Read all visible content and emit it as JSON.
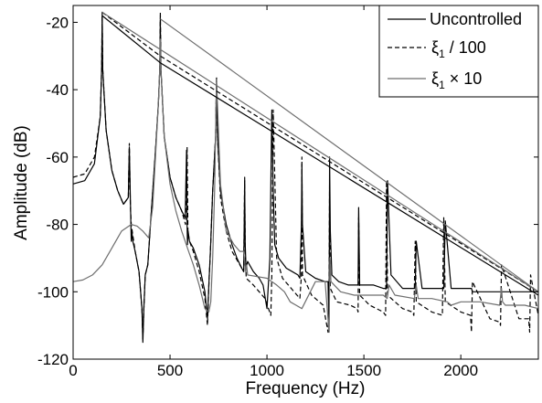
{
  "chart_data": {
    "type": "line",
    "xlabel": "Frequency (Hz)",
    "ylabel": "Amplitude (dB)",
    "xlim": [
      0,
      2400
    ],
    "ylim": [
      -120,
      -15
    ],
    "xticks": [
      0,
      500,
      1000,
      1500,
      2000
    ],
    "xtick_labels": [
      "0",
      "500",
      "1000",
      "1500",
      "2000"
    ],
    "yticks": [
      -120,
      -100,
      -80,
      -60,
      -40,
      -20
    ],
    "ytick_labels": [
      "-120",
      "-100",
      "-80",
      "-60",
      "-40",
      "-20"
    ],
    "grid": false,
    "legend_position": "top-right",
    "legend": {
      "entry1": "Uncontrolled",
      "entry2_sym": "ξ",
      "entry2_sub": "1",
      "entry2_rest": " / 100",
      "entry3_sym": "ξ",
      "entry3_sub": "1",
      "entry3_rest": " × 10"
    },
    "series": [
      {
        "name": "Uncontrolled",
        "color": "#000000",
        "dash": "solid",
        "x": [
          0,
          60,
          110,
          140,
          147,
          150,
          153,
          170,
          200,
          230,
          260,
          285,
          290,
          295,
          298,
          300,
          303,
          308,
          320,
          340,
          355,
          360,
          365,
          372,
          385,
          405,
          425,
          440,
          447,
          450,
          453,
          470,
          500,
          530,
          560,
          578,
          585,
          588,
          590,
          593,
          600,
          620,
          650,
          680,
          693,
          700,
          708,
          720,
          735,
          740,
          745,
          760,
          790,
          820,
          845,
          870,
          880,
          885,
          888,
          892,
          900,
          930,
          960,
          980,
          1000,
          1015,
          1025,
          1032,
          1040,
          1060,
          1100,
          1130,
          1160,
          1170,
          1178,
          1180,
          1183,
          1200,
          1250,
          1300,
          1315,
          1320,
          1323,
          1327,
          1335,
          1370,
          1420,
          1460,
          1470,
          1473,
          1478,
          1500,
          1550,
          1600,
          1612,
          1617,
          1622,
          1640,
          1700,
          1750,
          1760,
          1765,
          1770,
          1800,
          1880,
          1905,
          1912,
          1920,
          1950,
          2030,
          2050,
          2055,
          2060,
          2100,
          2190,
          2200,
          2205,
          2210,
          2260,
          2320,
          2350,
          2355,
          2360,
          2400
        ],
        "y": [
          -68,
          -67,
          -62,
          -48,
          -34,
          -18,
          -34,
          -52,
          -64,
          -70,
          -74,
          -72,
          -57,
          -72,
          -80,
          -85,
          -82,
          -85,
          -88,
          -94,
          -105,
          -115,
          -105,
          -95,
          -92,
          -75,
          -58,
          -44,
          -34,
          -19,
          -34,
          -54,
          -66,
          -72,
          -76,
          -78,
          -58,
          -80,
          -86,
          -82,
          -85,
          -87,
          -92,
          -100,
          -108,
          -98,
          -88,
          -70,
          -54,
          -37,
          -54,
          -70,
          -80,
          -86,
          -90,
          -93,
          -94,
          -67,
          -86,
          -93,
          -91,
          -94,
          -96,
          -98,
          -105,
          -90,
          -46,
          -70,
          -86,
          -90,
          -93,
          -94,
          -95,
          -96,
          -80,
          -62,
          -80,
          -94,
          -96,
          -97,
          -97,
          -112,
          -60,
          -82,
          -95,
          -97,
          -98,
          -98,
          -98,
          -75,
          -98,
          -98,
          -98,
          -99,
          -99,
          -99,
          -67,
          -95,
          -99,
          -99,
          -99,
          -99,
          -85,
          -99,
          -99,
          -99,
          -99,
          -79,
          -99,
          -99,
          -99,
          -99,
          -100,
          -100,
          -100,
          -100,
          -100,
          -100,
          -100,
          -100,
          -100,
          -100,
          -100,
          -100
        ]
      },
      {
        "name": "ξ1 / 100",
        "color": "#000000",
        "dash": "dashed",
        "x": [
          0,
          60,
          110,
          140,
          147,
          150,
          153,
          170,
          200,
          230,
          260,
          285,
          290,
          295,
          300,
          320,
          340,
          355,
          360,
          365,
          372,
          385,
          405,
          425,
          440,
          447,
          450,
          453,
          470,
          500,
          530,
          560,
          580,
          588,
          592,
          600,
          620,
          650,
          680,
          693,
          700,
          708,
          720,
          735,
          740,
          745,
          760,
          790,
          820,
          860,
          880,
          885,
          888,
          893,
          930,
          960,
          990,
          1020,
          1025,
          1032,
          1050,
          1080,
          1140,
          1170,
          1178,
          1180,
          1183,
          1230,
          1290,
          1315,
          1320,
          1323,
          1327,
          1360,
          1430,
          1465,
          1470,
          1473,
          1478,
          1530,
          1600,
          1612,
          1617,
          1622,
          1700,
          1750,
          1758,
          1765,
          1770,
          1850,
          1905,
          1912,
          1920,
          2000,
          2050,
          2055,
          2060,
          2150,
          2200,
          2205,
          2210,
          2300,
          2350,
          2355,
          2360,
          2400
        ],
        "y": [
          -66,
          -65,
          -60,
          -48,
          -34,
          -17,
          -34,
          -52,
          -64,
          -70,
          -74,
          -72,
          -56,
          -74,
          -80,
          -88,
          -94,
          -105,
          -114,
          -105,
          -95,
          -92,
          -75,
          -58,
          -44,
          -34,
          -17,
          -34,
          -54,
          -66,
          -72,
          -76,
          -80,
          -57,
          -82,
          -85,
          -88,
          -94,
          -102,
          -110,
          -98,
          -88,
          -70,
          -54,
          -36,
          -54,
          -72,
          -82,
          -88,
          -92,
          -94,
          -66,
          -88,
          -96,
          -98,
          -100,
          -102,
          -107,
          -95,
          -46,
          -90,
          -96,
          -100,
          -102,
          -95,
          -60,
          -95,
          -101,
          -104,
          -112,
          -100,
          -68,
          -99,
          -103,
          -104,
          -105,
          -106,
          -78,
          -101,
          -104,
          -106,
          -107,
          -67,
          -101,
          -105,
          -106,
          -107,
          -85,
          -103,
          -106,
          -107,
          -78,
          -103,
          -106,
          -107,
          -112,
          -97,
          -108,
          -109,
          -110,
          -92,
          -108,
          -108,
          -112,
          -95,
          -107
        ]
      },
      {
        "name": "ξ1 × 10",
        "color": "#6e6e6e",
        "dash": "solid",
        "x": [
          0,
          50,
          100,
          150,
          200,
          250,
          300,
          330,
          360,
          390,
          410,
          425,
          440,
          447,
          450,
          453,
          470,
          500,
          530,
          560,
          590,
          620,
          650,
          680,
          700,
          710,
          720,
          730,
          740,
          760,
          790,
          830,
          860,
          880,
          890,
          895,
          900,
          950,
          1000,
          1050,
          1090,
          1120,
          1150,
          1180,
          1250,
          1300,
          1320,
          1325,
          1330,
          1380,
          1450,
          1550,
          1600,
          1620,
          1630,
          1660,
          1760,
          1770,
          1780,
          1850,
          1930,
          1950,
          2000,
          2100,
          2200,
          2210,
          2215,
          2230,
          2330,
          2400
        ],
        "y": [
          -97,
          -96.5,
          -95,
          -92,
          -87,
          -82,
          -80,
          -80.5,
          -82,
          -84,
          -75,
          -60,
          -44,
          -34,
          -25,
          -34,
          -54,
          -68,
          -76,
          -82,
          -87,
          -92,
          -98,
          -105,
          -106,
          -103,
          -90,
          -70,
          -37,
          -68,
          -82,
          -86,
          -88,
          -88,
          -94,
          -92,
          -95,
          -95.5,
          -96,
          -98,
          -100,
          -103,
          -104,
          -105,
          -97,
          -97,
          -112,
          -90,
          -97,
          -100,
          -101,
          -101,
          -101,
          -102,
          -98,
          -101,
          -102,
          -98,
          -102,
          -102,
          -103,
          -104,
          -103,
          -103,
          -104,
          -99,
          -103,
          -104,
          -104,
          -105
        ]
      }
    ],
    "trend_lines": [
      {
        "name": "Uncontrolled",
        "color": "#000000",
        "dash": "solid",
        "x": [
          150,
          450,
          2400
        ],
        "y": [
          -18,
          -32,
          -101
        ]
      },
      {
        "name": "ξ1 / 100",
        "color": "#000000",
        "dash": "dashed",
        "x": [
          150,
          450,
          2400
        ],
        "y": [
          -17,
          -30,
          -100
        ]
      },
      {
        "name": "ξ1 × 10 (a)",
        "color": "#6e6e6e",
        "dash": "solid",
        "x": [
          150,
          2400
        ],
        "y": [
          -17,
          -100
        ]
      },
      {
        "name": "ξ1 × 10 (b)",
        "color": "#6e6e6e",
        "dash": "solid",
        "x": [
          450,
          2400
        ],
        "y": [
          -19,
          -100
        ]
      }
    ]
  }
}
